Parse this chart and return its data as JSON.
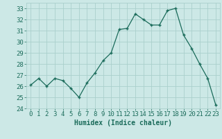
{
  "x": [
    0,
    1,
    2,
    3,
    4,
    5,
    6,
    7,
    8,
    9,
    10,
    11,
    12,
    13,
    14,
    15,
    16,
    17,
    18,
    19,
    20,
    21,
    22,
    23
  ],
  "y": [
    26.1,
    26.7,
    26.0,
    26.7,
    26.5,
    25.8,
    25.0,
    26.3,
    27.2,
    28.3,
    29.0,
    31.1,
    31.2,
    32.5,
    32.0,
    31.5,
    31.5,
    32.8,
    33.0,
    30.6,
    29.4,
    28.0,
    26.7,
    24.3
  ],
  "xlabel": "Humidex (Indice chaleur)",
  "ylim": [
    24,
    33.5
  ],
  "xlim": [
    -0.5,
    23.5
  ],
  "yticks": [
    24,
    25,
    26,
    27,
    28,
    29,
    30,
    31,
    32,
    33
  ],
  "xticks": [
    0,
    1,
    2,
    3,
    4,
    5,
    6,
    7,
    8,
    9,
    10,
    11,
    12,
    13,
    14,
    15,
    16,
    17,
    18,
    19,
    20,
    21,
    22,
    23
  ],
  "line_color": "#1a6b5a",
  "bg_color": "#cce8e6",
  "grid_color": "#aad0cc",
  "tick_color": "#1a6b5a",
  "xlabel_fontsize": 7,
  "tick_fontsize": 6.5
}
